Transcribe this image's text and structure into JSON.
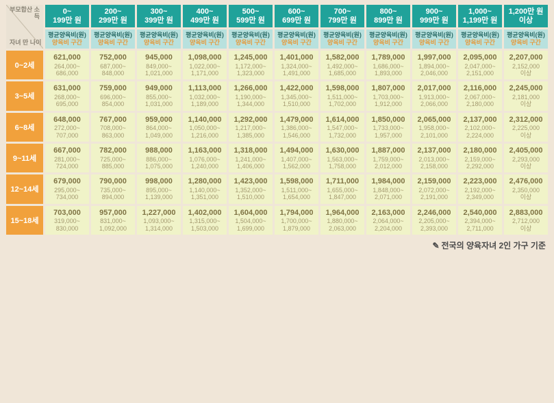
{
  "corner": {
    "top": "부모합산\n소득",
    "bottom": "자녀\n만 나이"
  },
  "sub_header": {
    "line1": "평균양육비(원)",
    "line2": "양육비 구간"
  },
  "columns": [
    {
      "line1": "0~",
      "line2": "199만 원"
    },
    {
      "line1": "200~",
      "line2": "299만 원"
    },
    {
      "line1": "300~",
      "line2": "399만 원"
    },
    {
      "line1": "400~",
      "line2": "499만 원"
    },
    {
      "line1": "500~",
      "line2": "599만 원"
    },
    {
      "line1": "600~",
      "line2": "699만 원"
    },
    {
      "line1": "700~",
      "line2": "799만 원"
    },
    {
      "line1": "800~",
      "line2": "899만 원"
    },
    {
      "line1": "900~",
      "line2": "999만 원"
    },
    {
      "line1": "1,000~",
      "line2": "1,199만 원"
    },
    {
      "line1": "1,200만 원",
      "line2": "이상"
    }
  ],
  "rows": [
    {
      "label": "0~2세",
      "cells": [
        {
          "avg": "621,000",
          "range": "264,000~\n686,000"
        },
        {
          "avg": "752,000",
          "range": "687,000~\n848,000"
        },
        {
          "avg": "945,000",
          "range": "849,000~\n1,021,000"
        },
        {
          "avg": "1,098,000",
          "range": "1,022,000~\n1,171,000"
        },
        {
          "avg": "1,245,000",
          "range": "1,172,000~\n1,323,000"
        },
        {
          "avg": "1,401,000",
          "range": "1,324,000~\n1,491,000"
        },
        {
          "avg": "1,582,000",
          "range": "1,492,000~\n1,685,000"
        },
        {
          "avg": "1,789,000",
          "range": "1,686,000~\n1,893,000"
        },
        {
          "avg": "1,997,000",
          "range": "1,894,000~\n2,046,000"
        },
        {
          "avg": "2,095,000",
          "range": "2,047,000~\n2,151,000"
        },
        {
          "avg": "2,207,000",
          "range": "2,152,000\n이상"
        }
      ]
    },
    {
      "label": "3~5세",
      "cells": [
        {
          "avg": "631,000",
          "range": "268,000~\n695,000"
        },
        {
          "avg": "759,000",
          "range": "696,000~\n854,000"
        },
        {
          "avg": "949,000",
          "range": "855,000~\n1,031,000"
        },
        {
          "avg": "1,113,000",
          "range": "1,032,000~\n1,189,000"
        },
        {
          "avg": "1,266,000",
          "range": "1,190,000~\n1,344,000"
        },
        {
          "avg": "1,422,000",
          "range": "1,345,000~\n1,510,000"
        },
        {
          "avg": "1,598,000",
          "range": "1,511,000~\n1,702,000"
        },
        {
          "avg": "1,807,000",
          "range": "1,703,000~\n1,912,000"
        },
        {
          "avg": "2,017,000",
          "range": "1,913,000~\n2,066,000"
        },
        {
          "avg": "2,116,000",
          "range": "2,067,000~\n2,180,000"
        },
        {
          "avg": "2,245,000",
          "range": "2,181,000\n이상"
        }
      ]
    },
    {
      "label": "6~8세",
      "cells": [
        {
          "avg": "648,000",
          "range": "272,000~\n707,000"
        },
        {
          "avg": "767,000",
          "range": "708,000~\n863,000"
        },
        {
          "avg": "959,000",
          "range": "864,000~\n1,049,000"
        },
        {
          "avg": "1,140,000",
          "range": "1,050,000~\n1,216,000"
        },
        {
          "avg": "1,292,000",
          "range": "1,217,000~\n1,385,000"
        },
        {
          "avg": "1,479,000",
          "range": "1,386,000~\n1,546,000"
        },
        {
          "avg": "1,614,000",
          "range": "1,547,000~\n1,732,000"
        },
        {
          "avg": "1,850,000",
          "range": "1,733,000~\n1,957,000"
        },
        {
          "avg": "2,065,000",
          "range": "1,958,000~\n2,101,000"
        },
        {
          "avg": "2,137,000",
          "range": "2,102,000~\n2,224,000"
        },
        {
          "avg": "2,312,000",
          "range": "2,225,000\n이상"
        }
      ]
    },
    {
      "label": "9~11세",
      "cells": [
        {
          "avg": "667,000",
          "range": "281,000~\n724,000"
        },
        {
          "avg": "782,000",
          "range": "725,000~\n885,000"
        },
        {
          "avg": "988,000",
          "range": "886,000~\n1,075,000"
        },
        {
          "avg": "1,163,000",
          "range": "1,076,000~\n1,240,000"
        },
        {
          "avg": "1,318,000",
          "range": "1,241,000~\n1,406,000"
        },
        {
          "avg": "1,494,000",
          "range": "1,407,000~\n1,562,000"
        },
        {
          "avg": "1,630,000",
          "range": "1,563,000~\n1,758,000"
        },
        {
          "avg": "1,887,000",
          "range": "1,759,000~\n2,012,000"
        },
        {
          "avg": "2,137,000",
          "range": "2,013,000~\n2,158,000"
        },
        {
          "avg": "2,180,000",
          "range": "2,159,000~\n2,292,000"
        },
        {
          "avg": "2,405,000",
          "range": "2,293,000\n이상"
        }
      ]
    },
    {
      "label": "12~14세",
      "cells": [
        {
          "avg": "679,000",
          "range": "295,000~\n734,000"
        },
        {
          "avg": "790,000",
          "range": "735,000~\n894,000"
        },
        {
          "avg": "998,000",
          "range": "895,000~\n1,139,000"
        },
        {
          "avg": "1,280,000",
          "range": "1,140,000~\n1,351,000"
        },
        {
          "avg": "1,423,000",
          "range": "1,352,000~\n1,510,000"
        },
        {
          "avg": "1,598,000",
          "range": "1,511,000~\n1,654,000"
        },
        {
          "avg": "1,711,000",
          "range": "1,655,000~\n1,847,000"
        },
        {
          "avg": "1,984,000",
          "range": "1,848,000~\n2,071,000"
        },
        {
          "avg": "2,159,000",
          "range": "2,072,000~\n2,191,000"
        },
        {
          "avg": "2,223,000",
          "range": "2,192,000~\n2,349,000"
        },
        {
          "avg": "2,476,000",
          "range": "2,350,000\n이상"
        }
      ]
    },
    {
      "label": "15~18세",
      "cells": [
        {
          "avg": "703,000",
          "range": "319,000~\n830,000"
        },
        {
          "avg": "957,000",
          "range": "831,000~\n1,092,000"
        },
        {
          "avg": "1,227,000",
          "range": "1,093,000~\n1,314,000"
        },
        {
          "avg": "1,402,000",
          "range": "1,315,000~\n1,503,000"
        },
        {
          "avg": "1,604,000",
          "range": "1,504,000~\n1,699,000"
        },
        {
          "avg": "1,794,000",
          "range": "1,700,000~\n1,879,000"
        },
        {
          "avg": "1,964,000",
          "range": "1,880,000~\n2,063,000"
        },
        {
          "avg": "2,163,000",
          "range": "2,064,000~\n2,204,000"
        },
        {
          "avg": "2,246,000",
          "range": "2,205,000~\n2,393,000"
        },
        {
          "avg": "2,540,000",
          "range": "2,394,000~\n2,711,000"
        },
        {
          "avg": "2,883,000",
          "range": "2,712,000\n이상"
        }
      ]
    }
  ],
  "footnote": "전국의 양육자녀 2인 가구 기준",
  "colors": {
    "page_bg": "#f0e6d8",
    "col_head_bg": "#20a29a",
    "sub_head_bg": "#b8e1de",
    "row_head_bg": "#f1a13c",
    "cell_bg": "#f0f3c8",
    "corner_bg": "#eae2d4"
  }
}
